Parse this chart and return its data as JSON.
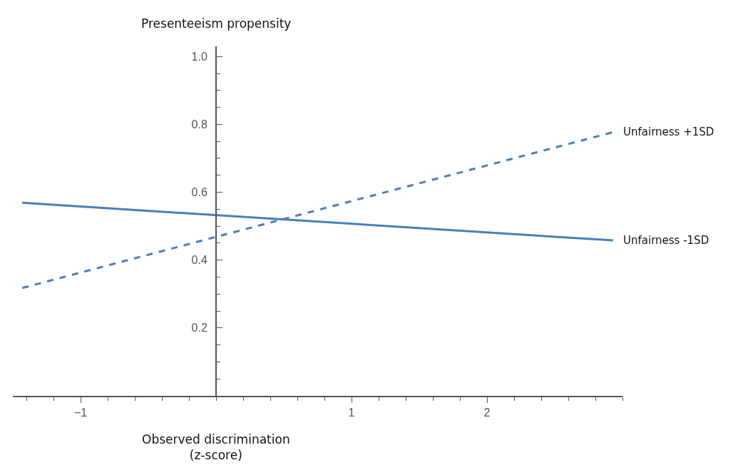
{
  "chart_data": {
    "type": "line",
    "ylabel": "Presenteeism propensity",
    "xlabel": "Observed discrimination\n(z-score)",
    "xlim": [
      -1.5,
      3.0
    ],
    "xticks": [
      -1,
      1,
      2
    ],
    "ylim": [
      0,
      1.03
    ],
    "yticks": [
      0.2,
      0.4,
      0.6,
      0.8,
      {
        "value": 1,
        "label": "1.0"
      }
    ],
    "x": [
      -1.43,
      2.93
    ],
    "legend": false,
    "marker": "none",
    "series": [
      {
        "name": "Unfairness +1SD",
        "color": "#4a7ebb",
        "line_style": "dashed",
        "values": [
          0.318,
          0.777
        ]
      },
      {
        "name": "Unfairness -1SD",
        "color": "#4a7ebb",
        "line_style": "solid",
        "values": [
          0.569,
          0.458
        ]
      }
    ]
  }
}
